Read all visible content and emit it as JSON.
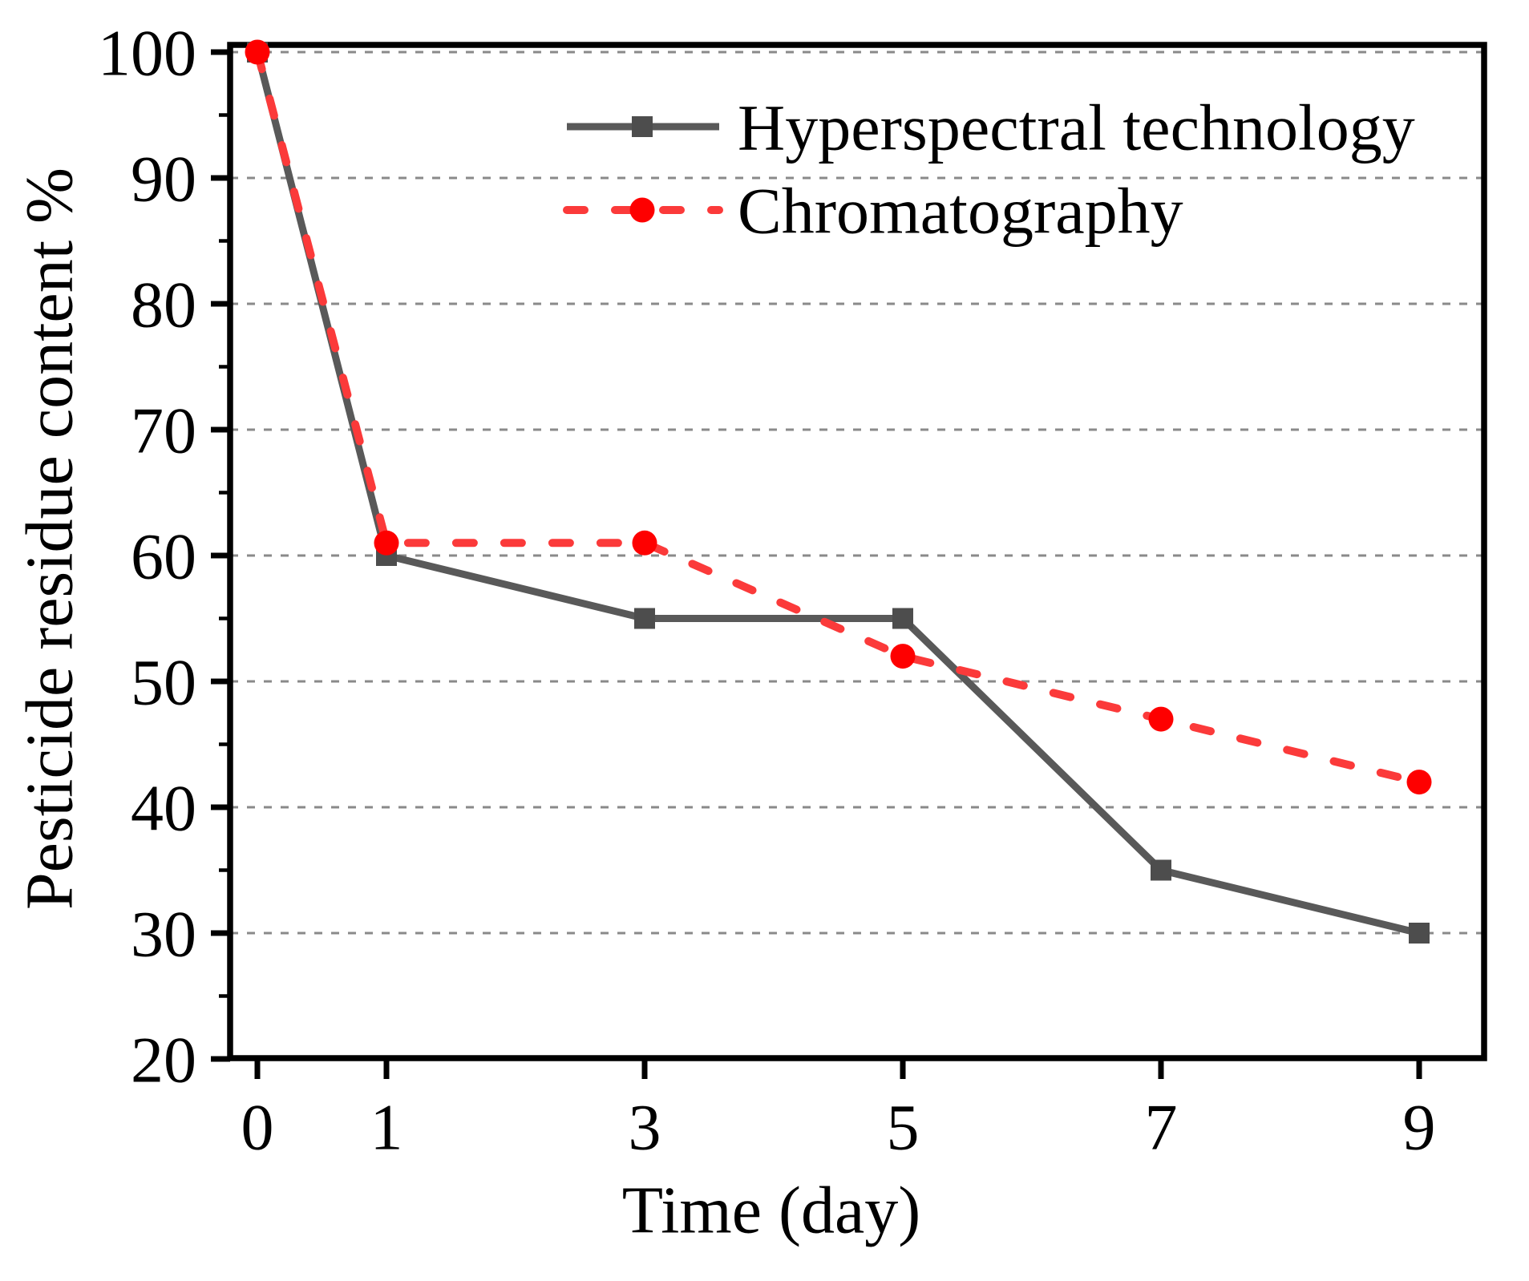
{
  "chart_data": {
    "type": "line",
    "title": "",
    "xlabel": "Time (day)",
    "ylabel": "Pesticide residue content %",
    "x": [
      0,
      1,
      3,
      5,
      7,
      9
    ],
    "x_tick_labels": [
      "0",
      "1",
      "3",
      "5",
      "7",
      "9"
    ],
    "y_ticks": [
      20,
      30,
      40,
      50,
      60,
      70,
      80,
      90,
      100
    ],
    "y_minor_ticks": [
      25,
      35,
      45,
      55,
      65,
      75,
      85,
      95
    ],
    "xlim": [
      -0.22,
      9.5
    ],
    "ylim": [
      20,
      100.6
    ],
    "grid": "horizontal-dashed",
    "grid_color": "#8a8a8a",
    "legend_position": "top-center-inside",
    "series": [
      {
        "name": "Hyperspectral technology",
        "values": [
          100,
          60,
          55,
          55,
          35,
          30
        ],
        "color": "#595959",
        "marker": "square",
        "marker_color": "#4d4d4d",
        "line_style": "solid"
      },
      {
        "name": "Chromatography",
        "values": [
          100,
          61,
          61,
          52,
          47,
          42
        ],
        "color": "#fb3a3a",
        "marker": "circle",
        "marker_color": "#fe0000",
        "line_style": "dashed"
      }
    ]
  }
}
